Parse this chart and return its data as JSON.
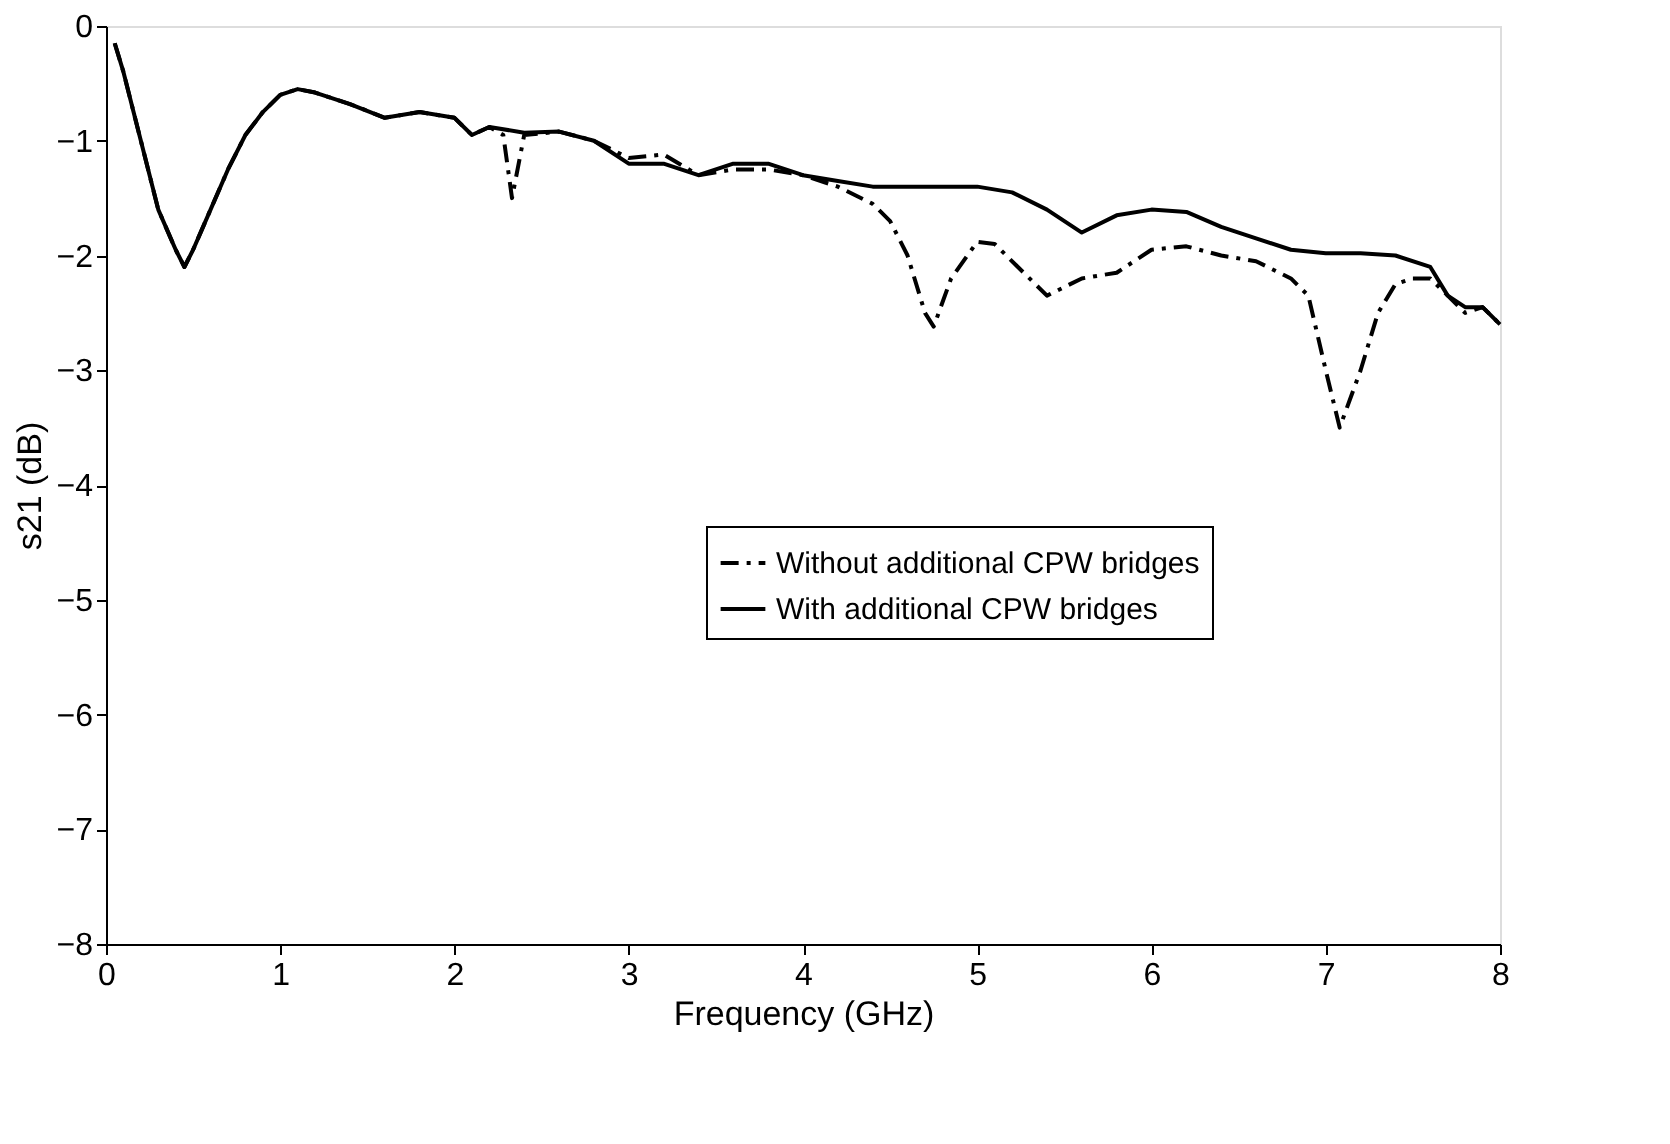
{
  "chart_data": {
    "type": "line",
    "xlabel": "Frequency (GHz)",
    "ylabel": "s21 (dB)",
    "xlim": [
      0,
      8
    ],
    "xticks": [
      0,
      1,
      2,
      3,
      4,
      5,
      6,
      7,
      8
    ],
    "ylim": [
      -8,
      0
    ],
    "yticks": [
      -8,
      -7,
      -6,
      -5,
      -4,
      -3,
      -2,
      -1,
      0
    ],
    "grid": false,
    "legend": "right",
    "marker": "none",
    "series": [
      {
        "name": "Without additional CPW bridges",
        "color": "#000000",
        "line_style": "dashdot",
        "x": [
          0.05,
          0.1,
          0.2,
          0.3,
          0.4,
          0.45,
          0.5,
          0.6,
          0.7,
          0.8,
          0.9,
          1.0,
          1.1,
          1.2,
          1.4,
          1.6,
          1.8,
          2.0,
          2.1,
          2.2,
          2.28,
          2.33,
          2.4,
          2.6,
          2.8,
          3.0,
          3.2,
          3.4,
          3.6,
          3.8,
          4.0,
          4.2,
          4.4,
          4.5,
          4.6,
          4.7,
          4.75,
          4.85,
          5.0,
          5.1,
          5.3,
          5.4,
          5.6,
          5.8,
          6.0,
          6.2,
          6.4,
          6.6,
          6.8,
          6.9,
          7.0,
          7.08,
          7.2,
          7.3,
          7.4,
          7.5,
          7.6,
          7.7,
          7.8,
          7.9,
          8.0
        ],
        "values": [
          -0.15,
          -0.4,
          -1.0,
          -1.6,
          -1.95,
          -2.1,
          -1.95,
          -1.6,
          -1.25,
          -0.95,
          -0.75,
          -0.6,
          -0.55,
          -0.58,
          -0.68,
          -0.8,
          -0.75,
          -0.8,
          -0.95,
          -0.88,
          -0.95,
          -1.5,
          -0.95,
          -0.92,
          -1.0,
          -1.15,
          -1.12,
          -1.3,
          -1.25,
          -1.25,
          -1.3,
          -1.4,
          -1.55,
          -1.7,
          -2.0,
          -2.5,
          -2.62,
          -2.2,
          -1.88,
          -1.9,
          -2.2,
          -2.35,
          -2.2,
          -2.15,
          -1.95,
          -1.92,
          -2.0,
          -2.05,
          -2.2,
          -2.35,
          -3.0,
          -3.5,
          -3.0,
          -2.5,
          -2.25,
          -2.2,
          -2.2,
          -2.35,
          -2.5,
          -2.45,
          -2.6
        ]
      },
      {
        "name": "With additional CPW bridges",
        "color": "#000000",
        "line_style": "solid",
        "x": [
          0.05,
          0.1,
          0.2,
          0.3,
          0.4,
          0.45,
          0.5,
          0.6,
          0.7,
          0.8,
          0.9,
          1.0,
          1.1,
          1.2,
          1.4,
          1.6,
          1.8,
          2.0,
          2.1,
          2.2,
          2.4,
          2.6,
          2.8,
          3.0,
          3.2,
          3.4,
          3.6,
          3.8,
          4.0,
          4.2,
          4.4,
          4.6,
          4.8,
          5.0,
          5.2,
          5.4,
          5.6,
          5.8,
          6.0,
          6.2,
          6.4,
          6.6,
          6.8,
          7.0,
          7.2,
          7.4,
          7.6,
          7.7,
          7.8,
          7.9,
          8.0
        ],
        "values": [
          -0.15,
          -0.4,
          -1.0,
          -1.6,
          -1.95,
          -2.1,
          -1.95,
          -1.6,
          -1.25,
          -0.95,
          -0.75,
          -0.6,
          -0.55,
          -0.58,
          -0.68,
          -0.8,
          -0.75,
          -0.8,
          -0.95,
          -0.88,
          -0.93,
          -0.92,
          -1.0,
          -1.2,
          -1.2,
          -1.3,
          -1.2,
          -1.2,
          -1.3,
          -1.35,
          -1.4,
          -1.4,
          -1.4,
          -1.4,
          -1.45,
          -1.6,
          -1.8,
          -1.65,
          -1.6,
          -1.62,
          -1.75,
          -1.85,
          -1.95,
          -1.98,
          -1.98,
          -2.0,
          -2.1,
          -2.35,
          -2.45,
          -2.45,
          -2.6
        ]
      }
    ]
  }
}
